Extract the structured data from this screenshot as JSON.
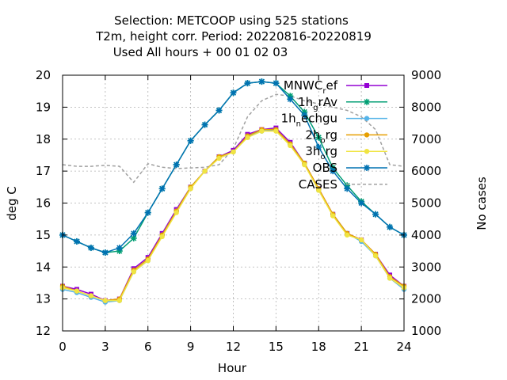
{
  "chart_data": {
    "type": "line",
    "title": [
      "Selection: METCOOP using   525 stations",
      "T2m, height corr.   Period: 20220816-20220819",
      "Used  All hours  + 00 01 02 03"
    ],
    "xlabel": "Hour",
    "ylabel": "deg C",
    "y2label": "No cases",
    "xlim": [
      0,
      24
    ],
    "ylim": [
      12,
      20
    ],
    "y2lim": [
      1000,
      9000
    ],
    "xticks": [
      "0",
      "3",
      "6",
      "9",
      "12",
      "15",
      "18",
      "21",
      "24"
    ],
    "yticks": [
      "12",
      "13",
      "14",
      "15",
      "16",
      "17",
      "18",
      "19",
      "20"
    ],
    "y2ticks": [
      "1000",
      "2000",
      "3000",
      "4000",
      "5000",
      "6000",
      "7000",
      "8000",
      "9000"
    ],
    "grid": true,
    "legend_position": "top-right",
    "x": [
      0,
      1,
      2,
      3,
      4,
      5,
      6,
      7,
      8,
      9,
      10,
      11,
      12,
      13,
      14,
      15,
      16,
      17,
      18,
      19,
      20,
      21,
      22,
      23,
      24
    ],
    "series": [
      {
        "name": "MNWC_ref",
        "legend_main": "MNWC",
        "legend_sub": "r",
        "legend_tail": "ef",
        "color": "#9400d3",
        "marker": "square",
        "values": [
          13.4,
          13.3,
          13.15,
          12.95,
          13.0,
          13.95,
          14.3,
          15.05,
          15.8,
          16.5,
          17.0,
          17.45,
          17.65,
          18.15,
          18.3,
          18.35,
          17.9,
          17.25,
          16.45,
          15.65,
          15.05,
          14.85,
          14.4,
          13.75,
          13.4
        ]
      },
      {
        "name": "1h_grAv",
        "legend_main": "1h",
        "legend_sub": "g",
        "legend_tail": "rAv",
        "color": "#009e73",
        "marker": "star",
        "values": [
          15.0,
          14.8,
          14.6,
          14.45,
          14.5,
          14.9,
          15.7,
          16.45,
          17.2,
          17.95,
          18.45,
          18.9,
          19.45,
          19.75,
          19.8,
          19.75,
          19.35,
          18.85,
          18.05,
          17.1,
          16.55,
          16.05,
          15.65,
          15.25,
          15.0
        ]
      },
      {
        "name": "1h_nechgu",
        "legend_main": "1h",
        "legend_sub": "n",
        "legend_tail": "echgu",
        "color": "#56b4e9",
        "marker": "circle",
        "values": [
          13.3,
          13.2,
          13.05,
          12.9,
          12.95,
          13.85,
          14.2,
          15.0,
          15.75,
          16.5,
          17.0,
          17.45,
          17.6,
          18.1,
          18.25,
          18.3,
          17.85,
          17.25,
          16.4,
          15.65,
          15.05,
          14.8,
          14.35,
          13.65,
          13.3
        ]
      },
      {
        "name": "2h_org",
        "legend_main": "2h",
        "legend_sub": "o",
        "legend_tail": "rg",
        "color": "#e69f00",
        "marker": "circle",
        "values": [
          13.4,
          13.25,
          13.1,
          12.95,
          13.0,
          13.9,
          14.25,
          15.0,
          15.75,
          16.5,
          17.0,
          17.45,
          17.6,
          18.1,
          18.3,
          18.3,
          17.85,
          17.25,
          16.45,
          15.65,
          15.05,
          14.85,
          14.4,
          13.7,
          13.4
        ]
      },
      {
        "name": "3h_org",
        "legend_main": "3h",
        "legend_sub": "o",
        "legend_tail": "rg",
        "color": "#f0e442",
        "marker": "circle",
        "values": [
          13.35,
          13.25,
          13.1,
          12.95,
          12.95,
          13.85,
          14.2,
          14.95,
          15.7,
          16.45,
          17.0,
          17.4,
          17.6,
          18.05,
          18.25,
          18.25,
          17.8,
          17.2,
          16.4,
          15.6,
          15.0,
          14.85,
          14.35,
          13.65,
          13.35
        ]
      },
      {
        "name": "OBS",
        "legend_main": "OBS",
        "legend_sub": "",
        "legend_tail": "",
        "color": "#0072b2",
        "marker": "star",
        "values": [
          15.0,
          14.8,
          14.6,
          14.45,
          14.6,
          15.05,
          15.7,
          16.45,
          17.2,
          17.95,
          18.45,
          18.9,
          19.45,
          19.75,
          19.8,
          19.75,
          19.25,
          18.75,
          17.75,
          17.0,
          16.45,
          16.0,
          15.65,
          15.25,
          15.0
        ]
      }
    ],
    "cases": {
      "name": "CASES",
      "axis": "y2",
      "color": "#a0a0a0",
      "style": "dashed",
      "values": [
        6200,
        6150,
        6150,
        6180,
        6150,
        5650,
        6230,
        6120,
        6080,
        6100,
        6120,
        6200,
        6700,
        7700,
        8200,
        8400,
        8350,
        8200,
        8100,
        8000,
        7900,
        7700,
        7300,
        6200,
        6150
      ]
    }
  }
}
